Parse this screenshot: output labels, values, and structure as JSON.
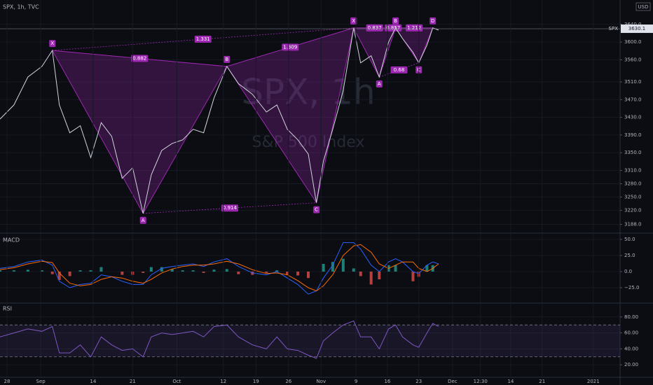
{
  "chart_data": [
    {
      "type": "line",
      "title": "SPX, 1h, TVC",
      "watermark": "SPX, 1h",
      "subtitle": "S&P 500 Index",
      "currency": "USD",
      "symbol_tag": "SPX",
      "last_price": 3630.1,
      "color": "#d1d4dc",
      "grid": true,
      "xlim": [
        0,
        533
      ],
      "ylim": [
        3170,
        3695
      ],
      "yticks": [
        {
          "value": 3188,
          "label": "3188.0"
        },
        {
          "value": 3220,
          "label": "3220.0"
        },
        {
          "value": 3250,
          "label": "3250.0"
        },
        {
          "value": 3280,
          "label": "3280.0"
        },
        {
          "value": 3310,
          "label": "3310.0"
        },
        {
          "value": 3350,
          "label": "3350.0"
        },
        {
          "value": 3390,
          "label": "3390.0"
        },
        {
          "value": 3430,
          "label": "3430.0"
        },
        {
          "value": 3470,
          "label": "3470.0"
        },
        {
          "value": 3510,
          "label": "3510.0"
        },
        {
          "value": 3560,
          "label": "3560.0"
        },
        {
          "value": 3600,
          "label": "3600.0"
        },
        {
          "value": 3640,
          "label": "3640.0"
        }
      ],
      "x": [
        0,
        12,
        24,
        36,
        45,
        51,
        60,
        69,
        78,
        87,
        96,
        105,
        114,
        123,
        130,
        139,
        148,
        157,
        166,
        175,
        184,
        195,
        205,
        217,
        229,
        238,
        247,
        256,
        265,
        272,
        278,
        286,
        295,
        304,
        310,
        319,
        326,
        334,
        340,
        346,
        355,
        360,
        367,
        372,
        377
      ],
      "series": [
        {
          "color": "#d1d4dc",
          "values": [
            3426,
            3458,
            3521,
            3545,
            3581,
            3458,
            3395,
            3411,
            3339,
            3418,
            3387,
            3292,
            3316,
            3213,
            3300,
            3355,
            3371,
            3379,
            3403,
            3395,
            3474,
            3545,
            3506,
            3482,
            3442,
            3458,
            3403,
            3379,
            3347,
            3237,
            3331,
            3403,
            3490,
            3632,
            3553,
            3569,
            3521,
            3600,
            3632,
            3608,
            3577,
            3553,
            3593,
            3632,
            3627
          ]
        }
      ],
      "pattern_color": "#9c27b0",
      "patterns": [
        {
          "points": [
            {
              "label": "X",
              "x": 45,
              "y": 3581
            },
            {
              "label": "A",
              "x": 123,
              "y": 3213
            },
            {
              "label": "B",
              "x": 195,
              "y": 3545
            },
            {
              "label": "C",
              "x": 272,
              "y": 3237
            },
            {
              "label": "D",
              "x": 304,
              "y": 3632
            }
          ],
          "ratios": [
            0.882,
            0.914,
            1.309,
            1.331
          ]
        },
        {
          "points": [
            {
              "label": "X",
              "x": 304,
              "y": 3632
            },
            {
              "label": "A",
              "x": 326,
              "y": 3521
            },
            {
              "label": "B",
              "x": 340,
              "y": 3632
            },
            {
              "label": "C",
              "x": 360,
              "y": 3553
            },
            {
              "label": "D",
              "x": 372,
              "y": 3632
            }
          ],
          "ratios": [
            0.837,
            0.68,
            1.212,
            0.857
          ]
        }
      ]
    },
    {
      "type": "macd",
      "title": "MACD",
      "xlim": [
        0,
        533
      ],
      "ylim": [
        -47.8,
        58.7
      ],
      "grid": true,
      "yticks": [
        {
          "value": 50,
          "label": "50.0"
        },
        {
          "value": 25,
          "label": "25.0"
        },
        {
          "value": 0,
          "label": "0.0"
        },
        {
          "value": -25,
          "label": "−25.0"
        }
      ],
      "up_color": "#26a69a",
      "down_color": "#ef5350",
      "x": [
        0,
        12,
        24,
        36,
        45,
        51,
        60,
        69,
        78,
        87,
        96,
        105,
        114,
        123,
        130,
        139,
        148,
        157,
        166,
        175,
        184,
        195,
        205,
        217,
        229,
        238,
        247,
        256,
        265,
        272,
        278,
        286,
        295,
        304,
        310,
        319,
        326,
        334,
        340,
        346,
        355,
        360,
        367,
        372,
        377
      ],
      "series": [
        {
          "type": "histogram",
          "values": [
            2,
            2,
            3,
            2,
            -4,
            -13,
            -7,
            2,
            2,
            7,
            0,
            -5,
            -5,
            -2,
            7,
            7,
            4,
            2,
            2,
            -2,
            3,
            4,
            -4,
            -5,
            -2,
            2,
            -5,
            -6,
            -10,
            0,
            12,
            15,
            20,
            5,
            -7,
            -20,
            -12,
            10,
            10,
            0,
            -15,
            -8,
            10,
            10,
            0
          ]
        },
        {
          "type": "line",
          "color": "#2962ff",
          "values": [
            5,
            8,
            15,
            18,
            10,
            -15,
            -25,
            -20,
            -18,
            -5,
            -8,
            -15,
            -20,
            -20,
            -5,
            5,
            8,
            10,
            12,
            8,
            15,
            20,
            8,
            -2,
            -5,
            0,
            -10,
            -20,
            -35,
            -30,
            -10,
            10,
            45,
            45,
            35,
            10,
            0,
            15,
            20,
            15,
            0,
            -3,
            10,
            15,
            12
          ]
        },
        {
          "type": "line",
          "color": "#ff6d00",
          "values": [
            3,
            6,
            12,
            16,
            14,
            -2,
            -18,
            -22,
            -20,
            -12,
            -8,
            -10,
            -15,
            -18,
            -12,
            -2,
            4,
            8,
            10,
            10,
            12,
            16,
            12,
            3,
            -3,
            -2,
            -5,
            -14,
            -25,
            -30,
            -22,
            -5,
            25,
            40,
            42,
            30,
            12,
            5,
            10,
            15,
            15,
            5,
            0,
            5,
            12
          ]
        }
      ]
    },
    {
      "type": "rsi",
      "title": "RSI",
      "xlim": [
        0,
        533
      ],
      "ylim": [
        5.2,
        96.5
      ],
      "grid": true,
      "yticks": [
        {
          "value": 80,
          "label": "80.00"
        },
        {
          "value": 60,
          "label": "60.00"
        },
        {
          "value": 40,
          "label": "40.00"
        },
        {
          "value": 20,
          "label": "20.00"
        }
      ],
      "band": [
        30,
        70
      ],
      "xticks": [
        {
          "value": 6,
          "label": "28"
        },
        {
          "value": 35,
          "label": "Sep"
        },
        {
          "value": 80,
          "label": "14"
        },
        {
          "value": 114,
          "label": "21"
        },
        {
          "value": 152,
          "label": "Oct"
        },
        {
          "value": 192,
          "label": "12"
        },
        {
          "value": 220,
          "label": "19"
        },
        {
          "value": 248,
          "label": "26"
        },
        {
          "value": 276,
          "label": "Nov"
        },
        {
          "value": 306,
          "label": "9"
        },
        {
          "value": 333,
          "label": "16"
        },
        {
          "value": 360,
          "label": "23"
        },
        {
          "value": 389,
          "label": "Dec"
        },
        {
          "value": 413,
          "label": "12:30"
        },
        {
          "value": 439,
          "label": "14"
        },
        {
          "value": 466,
          "label": "21"
        },
        {
          "value": 510,
          "label": "2021"
        }
      ],
      "x": [
        0,
        12,
        24,
        36,
        45,
        51,
        60,
        69,
        78,
        87,
        96,
        105,
        114,
        123,
        130,
        139,
        148,
        157,
        166,
        175,
        184,
        195,
        205,
        217,
        229,
        238,
        247,
        256,
        265,
        272,
        278,
        286,
        295,
        304,
        310,
        319,
        326,
        334,
        340,
        346,
        355,
        360,
        367,
        372,
        377
      ],
      "series": [
        {
          "color": "#7e57c2",
          "values": [
            55,
            60,
            65,
            62,
            68,
            35,
            35,
            45,
            30,
            55,
            45,
            38,
            40,
            30,
            55,
            60,
            58,
            60,
            62,
            55,
            68,
            70,
            55,
            45,
            40,
            55,
            40,
            38,
            32,
            28,
            50,
            60,
            70,
            75,
            55,
            55,
            40,
            65,
            70,
            55,
            45,
            42,
            60,
            72,
            68
          ]
        }
      ]
    }
  ]
}
